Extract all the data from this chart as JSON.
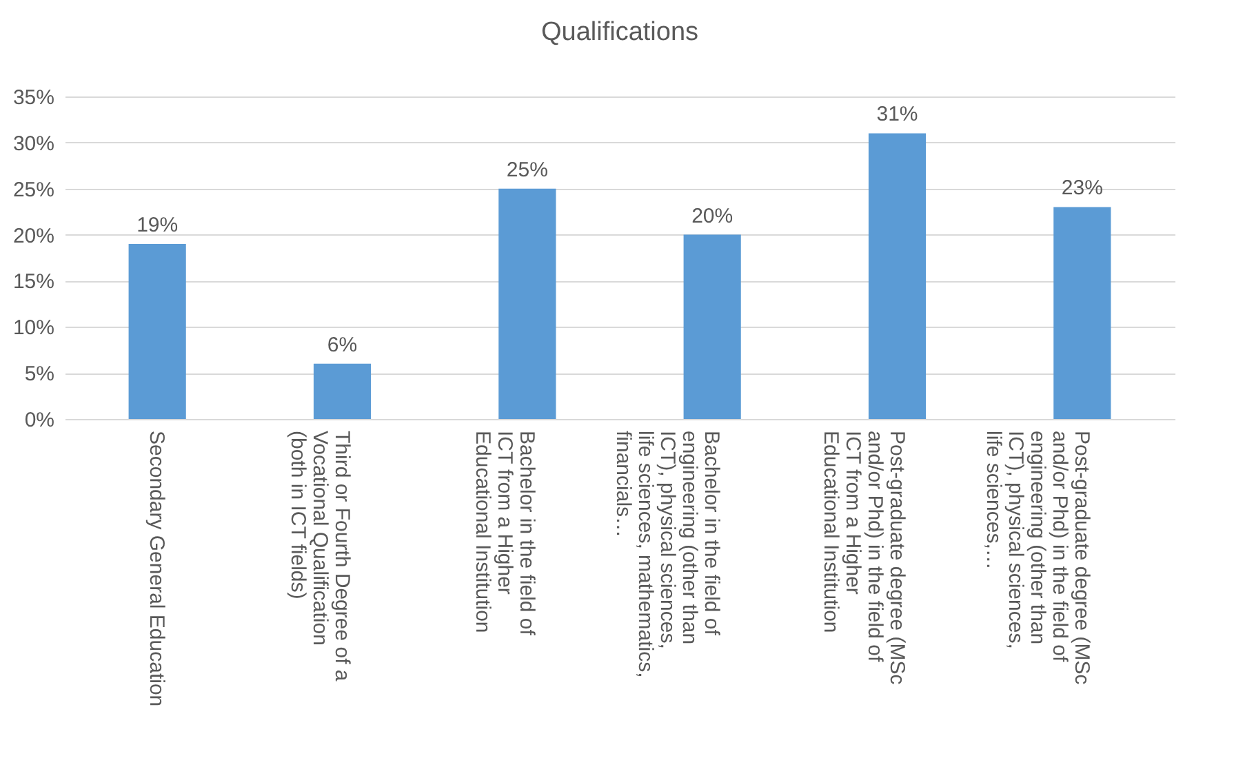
{
  "chart_data": {
    "type": "bar",
    "title": "Qualifications",
    "categories": [
      "Secondary General Education",
      "Third or Fourth Degree of a Vocational Qualification (both in ICT fields)",
      "Bachelor in the field of ICT from a Higher Educational Institution",
      "Bachelor in the field of engineering (other than ICT), physical sciences, life sciences, mathematics, financials…",
      "Post-graduate degree (MSc and/or Phd) in the field of ICT from a Higher Educational Institution",
      "Post-graduate degree (MSc and/or Phd) in the field of engineering (other than ICT), physical sciences, life sciences,…"
    ],
    "values": [
      19,
      6,
      25,
      20,
      31,
      23
    ],
    "color": "#5b9bd5",
    "value_labels": [
      "19%",
      "6%",
      "25%",
      "20%",
      "31%",
      "23%"
    ],
    "ylim": [
      0,
      35
    ],
    "yticks": [
      {
        "value": 0,
        "label": "0%"
      },
      {
        "value": 5,
        "label": "5%"
      },
      {
        "value": 10,
        "label": "10%"
      },
      {
        "value": 15,
        "label": "15%"
      },
      {
        "value": 20,
        "label": "20%"
      },
      {
        "value": 25,
        "label": "25%"
      },
      {
        "value": 30,
        "label": "30%"
      },
      {
        "value": 35,
        "label": "35%"
      }
    ],
    "grid": true
  }
}
